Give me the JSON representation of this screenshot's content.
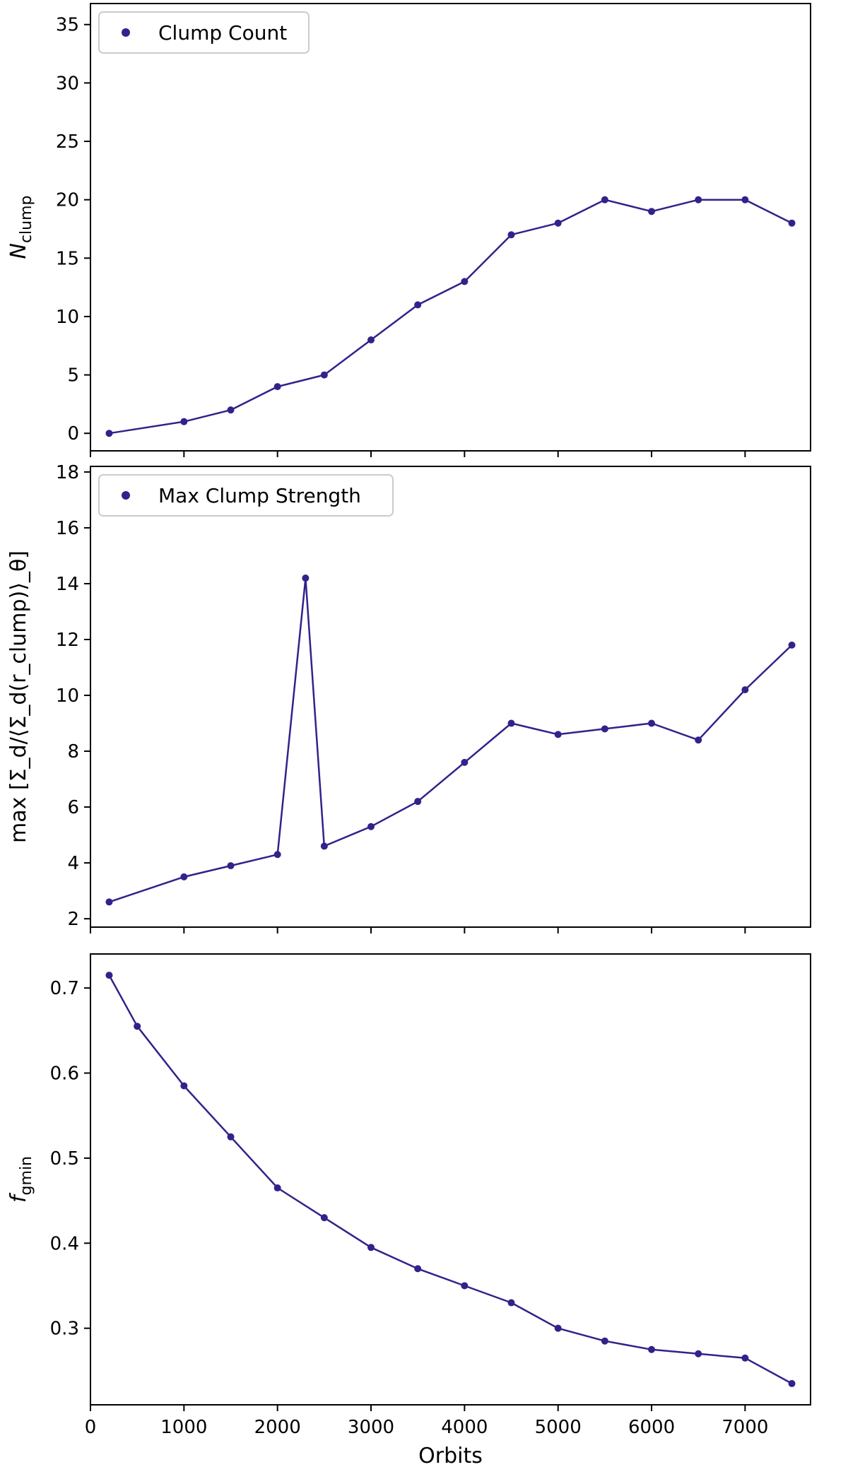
{
  "chart_data": [
    {
      "type": "line",
      "ylabel": "N_clump",
      "ylabel_main": "N",
      "ylabel_sub": "clump",
      "legend_position": "top-left",
      "xlim": [
        0,
        7700
      ],
      "ylim": [
        -1.5,
        36.8
      ],
      "yticks": [
        0,
        5,
        10,
        15,
        20,
        25,
        30,
        35
      ],
      "xticks": [
        0,
        1000,
        2000,
        3000,
        4000,
        5000,
        6000,
        7000
      ],
      "show_xtick_labels": false,
      "series": [
        {
          "name": "Clump Count",
          "color": "#30238a",
          "x": [
            200,
            1000,
            1500,
            2000,
            2500,
            3000,
            3500,
            4000,
            4500,
            5000,
            5500,
            6000,
            6500,
            7000,
            7500
          ],
          "y": [
            0,
            1,
            2,
            4,
            5,
            8,
            11,
            13,
            17,
            18,
            20,
            19,
            20,
            20,
            18
          ]
        }
      ]
    },
    {
      "type": "line",
      "ylabel": "max [Σ_d/⟨Σ_d(r_clump)⟩_θ]",
      "legend_position": "top-left",
      "xlim": [
        0,
        7700
      ],
      "ylim": [
        1.7,
        18.2
      ],
      "yticks": [
        2,
        4,
        6,
        8,
        10,
        12,
        14,
        16,
        18
      ],
      "xticks": [
        0,
        1000,
        2000,
        3000,
        4000,
        5000,
        6000,
        7000
      ],
      "show_xtick_labels": false,
      "series": [
        {
          "name": "Max Clump Strength",
          "color": "#30238a",
          "x": [
            200,
            1000,
            1500,
            2000,
            2300,
            2500,
            3000,
            3500,
            4000,
            4500,
            5000,
            5500,
            6000,
            6500,
            7000,
            7500
          ],
          "y": [
            2.6,
            3.5,
            3.9,
            4.3,
            14.2,
            4.6,
            5.3,
            6.2,
            7.6,
            9.0,
            8.6,
            8.8,
            9.0,
            8.4,
            10.2,
            11.8
          ]
        }
      ]
    },
    {
      "type": "line",
      "ylabel": "f_gmin",
      "ylabel_main": "f",
      "ylabel_sub": "gmin",
      "xlabel": "Orbits",
      "xlim": [
        0,
        7700
      ],
      "ylim": [
        0.21,
        0.74
      ],
      "yticks": [
        0.3,
        0.4,
        0.5,
        0.6,
        0.7
      ],
      "ytick_labels": [
        "0.3",
        "0.4",
        "0.5",
        "0.6",
        "0.7"
      ],
      "xticks": [
        0,
        1000,
        2000,
        3000,
        4000,
        5000,
        6000,
        7000
      ],
      "show_xtick_labels": true,
      "series": [
        {
          "color": "#30238a",
          "x": [
            200,
            500,
            1000,
            1500,
            2000,
            2500,
            3000,
            3500,
            4000,
            4500,
            5000,
            5500,
            6000,
            6500,
            7000,
            7500
          ],
          "y": [
            0.715,
            0.655,
            0.585,
            0.525,
            0.465,
            0.43,
            0.395,
            0.37,
            0.35,
            0.33,
            0.3,
            0.285,
            0.275,
            0.27,
            0.265,
            0.235
          ]
        }
      ]
    }
  ]
}
